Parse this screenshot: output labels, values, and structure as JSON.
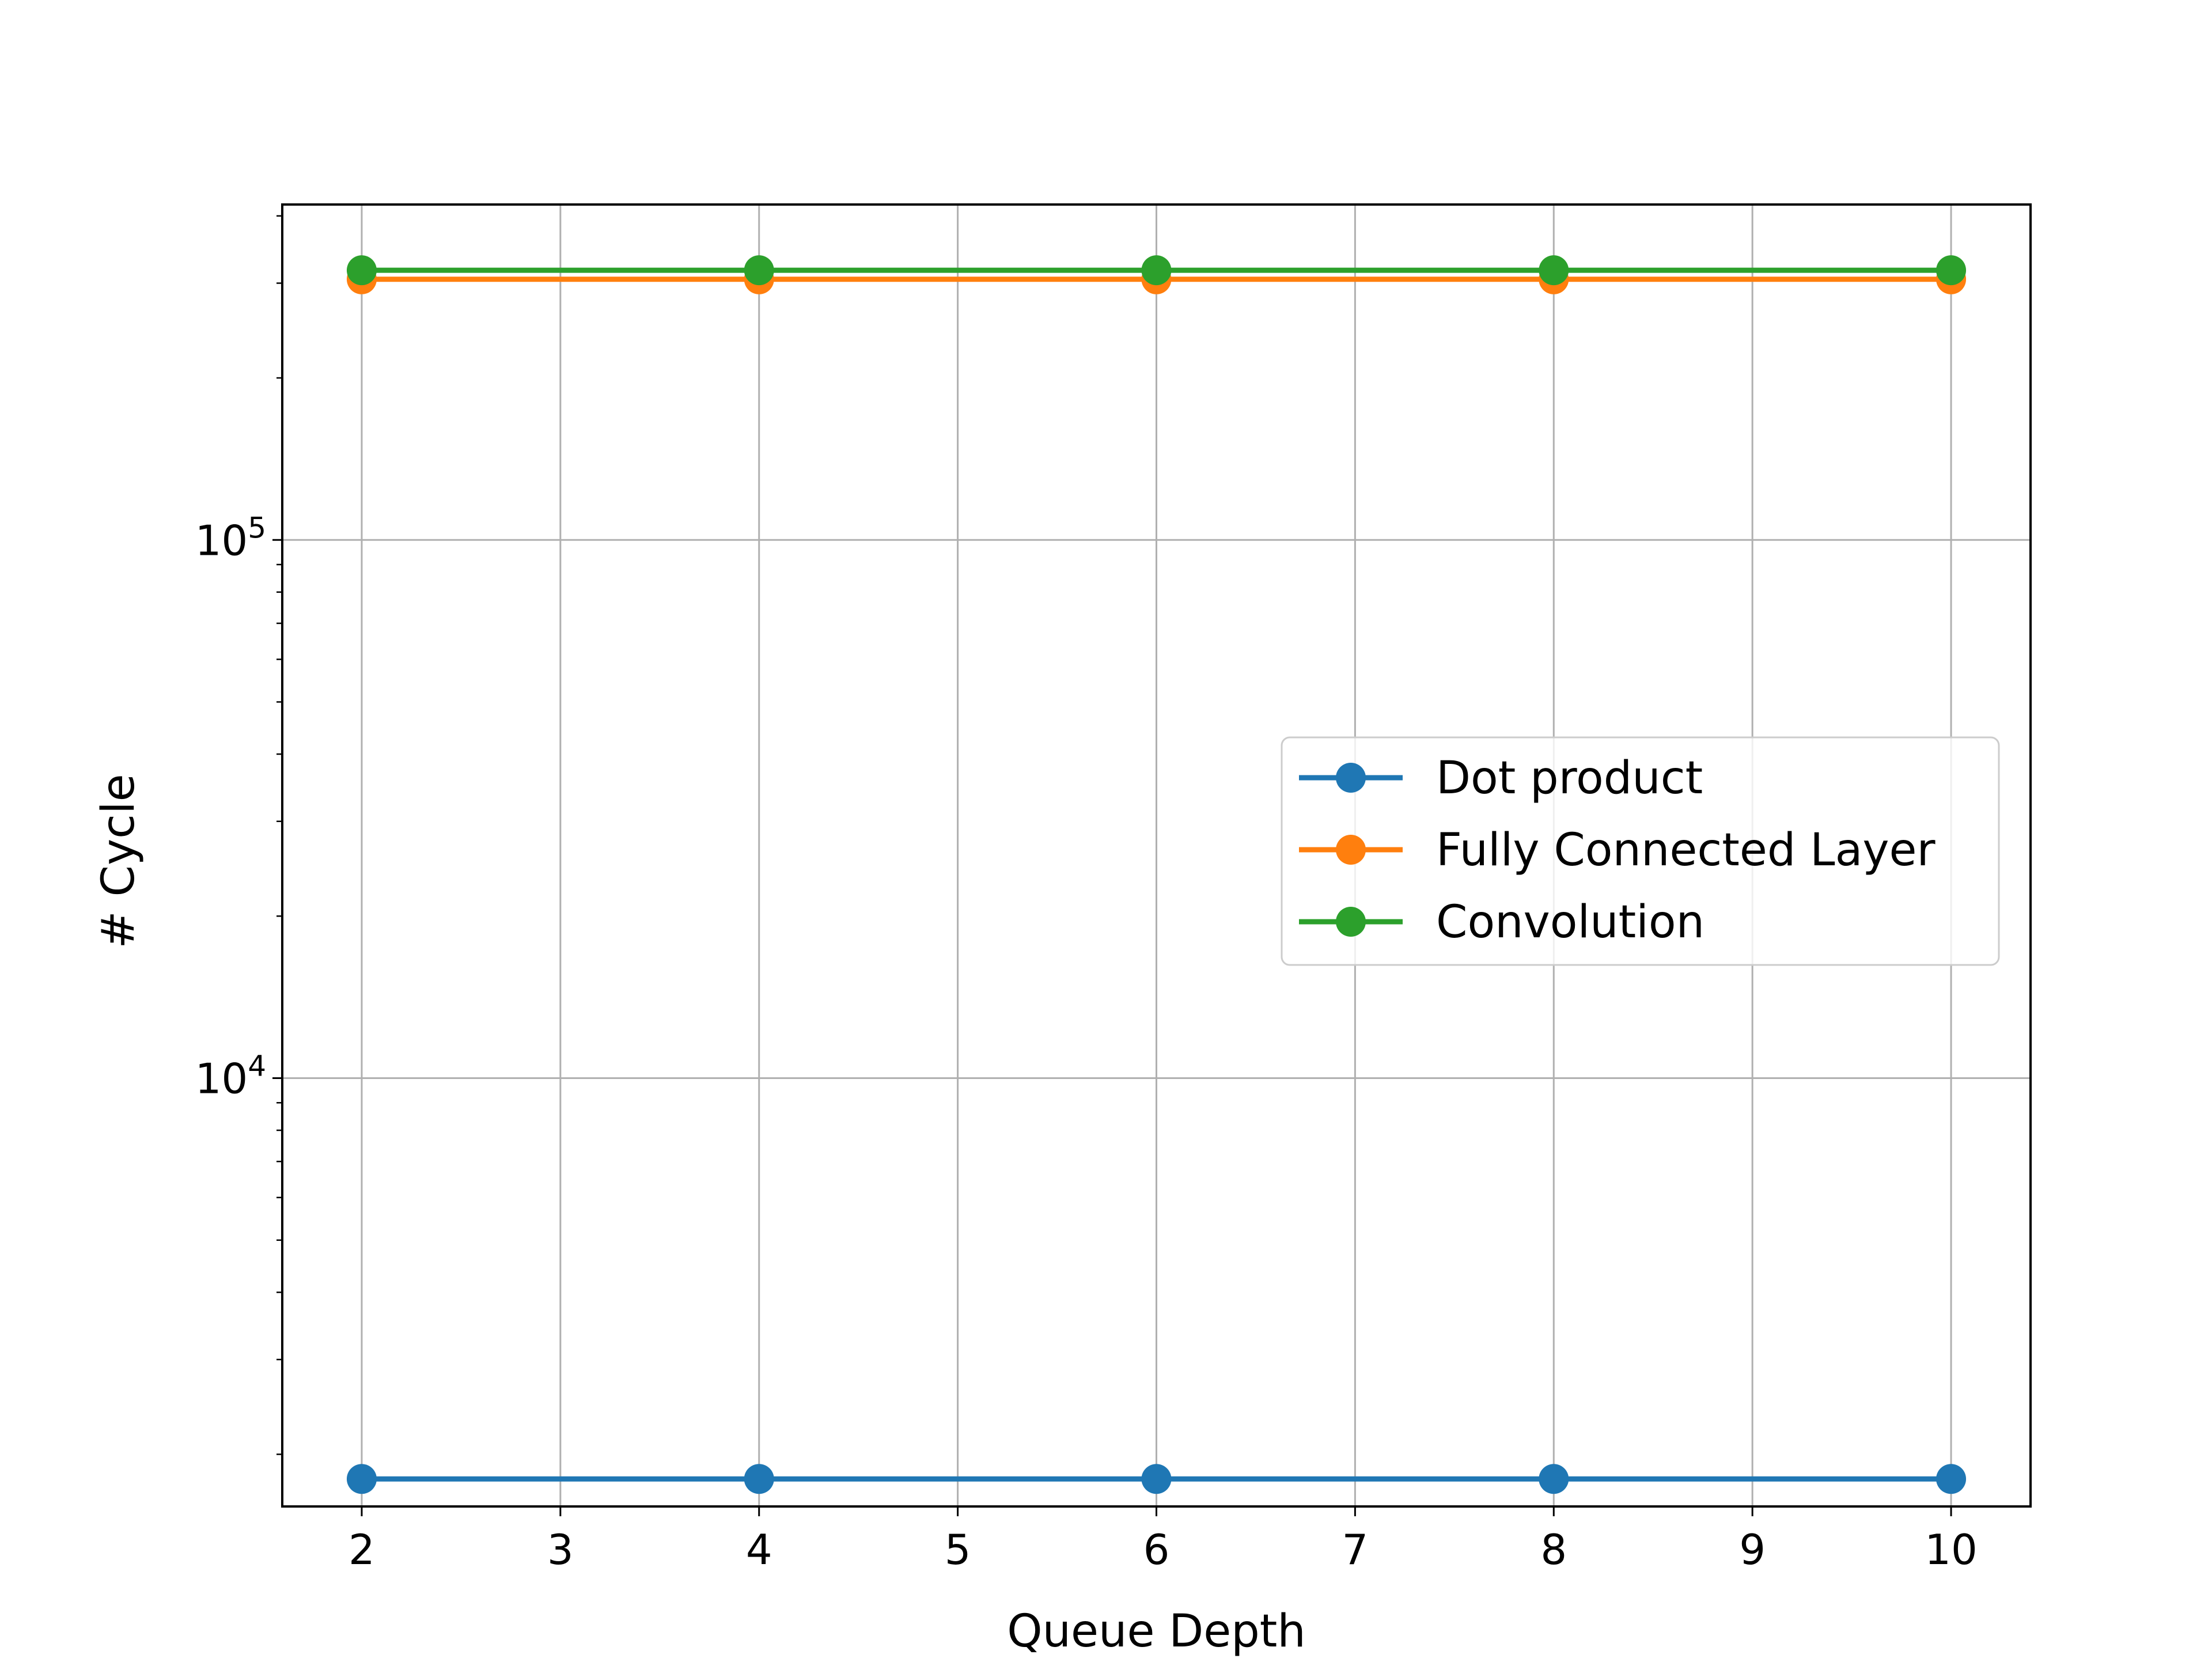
{
  "chart_data": {
    "type": "line",
    "title": "",
    "xlabel": "Queue Depth",
    "ylabel": "# Cycle",
    "x": [
      2,
      4,
      6,
      8,
      10
    ],
    "xlim": [
      1.6,
      10.4
    ],
    "ylim": [
      1600,
      420000
    ],
    "yscale": "log",
    "x_ticks": [
      2,
      3,
      4,
      5,
      6,
      7,
      8,
      9,
      10
    ],
    "y_major_ticks": [
      {
        "value": 10000,
        "base": "10",
        "exp": "4"
      },
      {
        "value": 100000,
        "base": "10",
        "exp": "5"
      }
    ],
    "grid": true,
    "legend_position": "center-right",
    "series": [
      {
        "name": "Dot product",
        "color": "#1f77b4",
        "marker": "circle",
        "values": [
          1800,
          1800,
          1800,
          1800,
          1800
        ]
      },
      {
        "name": "Fully Connected Layer",
        "color": "#ff7f0e",
        "marker": "circle",
        "values": [
          305000,
          305000,
          305000,
          305000,
          305000
        ]
      },
      {
        "name": "Convolution",
        "color": "#2ca02c",
        "marker": "circle",
        "values": [
          317000,
          317000,
          317000,
          317000,
          317000
        ]
      }
    ]
  }
}
